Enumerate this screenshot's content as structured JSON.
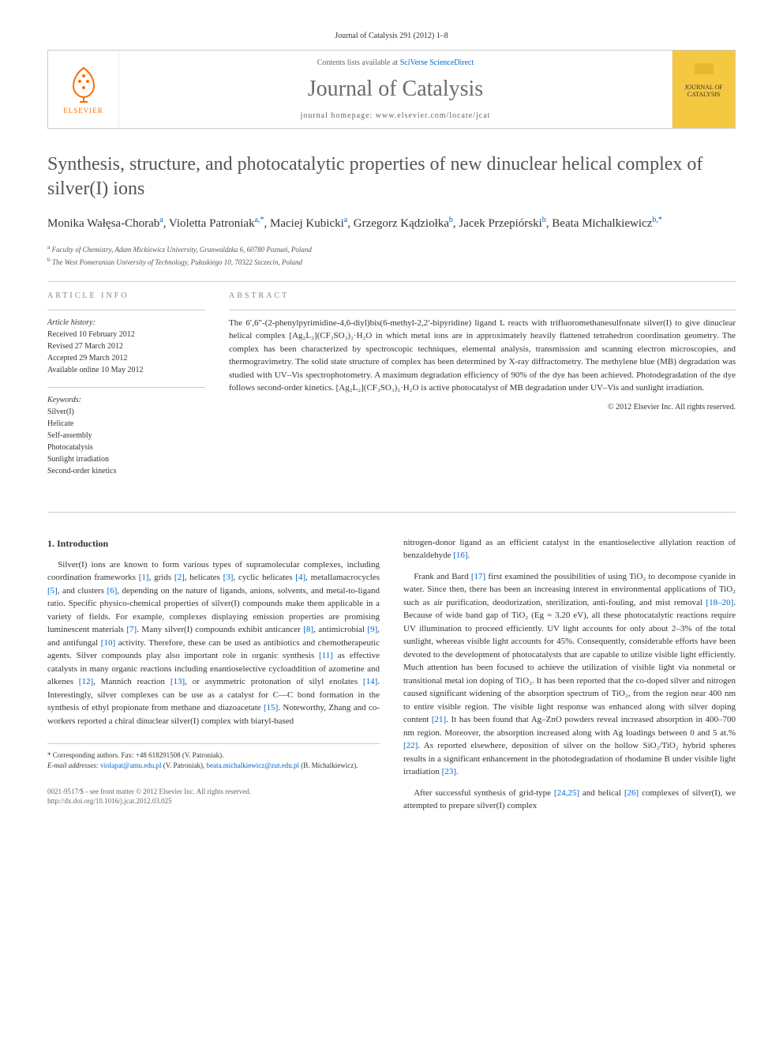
{
  "citation": "Journal of Catalysis 291 (2012) 1–8",
  "header": {
    "contents_prefix": "Contents lists available at ",
    "contents_link": "SciVerse ScienceDirect",
    "journal": "Journal of Catalysis",
    "homepage_prefix": "journal homepage: ",
    "homepage": "www.elsevier.com/locate/jcat",
    "publisher": "ELSEVIER",
    "cover_text": "JOURNAL OF CATALYSIS"
  },
  "title": "Synthesis, structure, and photocatalytic properties of new dinuclear helical complex of silver(I) ions",
  "authors_html": "Monika Wałęsa-Chorab<sup>a</sup>, Violetta Patroniak<sup>a,*</sup>, Maciej Kubicki<sup>a</sup>, Grzegorz Kądziołka<sup>b</sup>, Jacek Przepiórski<sup>b</sup>, Beata Michalkiewicz<sup>b,*</sup>",
  "affiliations": [
    {
      "sup": "a",
      "text": "Faculty of Chemistry, Adam Mickiewicz University, Grunwaldzka 6, 60780 Poznań, Poland"
    },
    {
      "sup": "b",
      "text": "The West Pomeranian University of Technology, Pułaskiego 10, 70322 Szczecin, Poland"
    }
  ],
  "article_info": {
    "heading": "ARTICLE INFO",
    "history_label": "Article history:",
    "history": [
      "Received 10 February 2012",
      "Revised 27 March 2012",
      "Accepted 29 March 2012",
      "Available online 10 May 2012"
    ],
    "keywords_label": "Keywords:",
    "keywords": [
      "Silver(I)",
      "Helicate",
      "Self-assembly",
      "Photocatalysis",
      "Sunlight irradiation",
      "Second-order kinetics"
    ]
  },
  "abstract": {
    "heading": "ABSTRACT",
    "text": "The 6′,6″-(2-phenylpyrimidine-4,6-diyl)bis(6-methyl-2,2′-bipyridine) ligand L reacts with trifluoromethanesulfonate silver(I) to give dinuclear helical complex [Ag₂L₂](CF₃SO₃)₂·H₂O in which metal ions are in approximately heavily flattened tetrahedron coordination geometry. The complex has been characterized by spectroscopic techniques, elemental analysis, transmission and scanning electron microscopies, and thermogravimetry. The solid state structure of complex has been determined by X-ray diffractometry. The methylene blue (MB) degradation was studied with UV–Vis spectrophotometry. A maximum degradation efficiency of 90% of the dye has been achieved. Photodegradation of the dye follows second-order kinetics. [Ag₂L₂](CF₃SO₃)₂·H₂O is active photocatalyst of MB degradation under UV–Vis and sunlight irradiation.",
    "copyright": "© 2012 Elsevier Inc. All rights reserved."
  },
  "intro": {
    "heading": "1. Introduction",
    "para1": "Silver(I) ions are known to form various types of supramolecular complexes, including coordination frameworks [1], grids [2], helicates [3], cyclic helicates [4], metallamacrocycles [5], and clusters [6], depending on the nature of ligands, anions, solvents, and metal-to-ligand ratio. Specific physico-chemical properties of silver(I) compounds make them applicable in a variety of fields. For example, complexes displaying emission properties are promising luminescent materials [7]. Many silver(I) compounds exhibit anticancer [8], antimicrobial [9], and antifungal [10] activity. Therefore, these can be used as antibiotics and chemotherapeutic agents. Silver compounds play also important role in organic synthesis [11] as effective catalysts in many organic reactions including enantioselective cycloaddition of azometine and alkenes [12], Mannich reaction [13], or asymmetric protonation of silyl enolates [14]. Interestingly, silver complexes can be use as a catalyst for C—C bond formation in the synthesis of ethyl propionate from methane and diazoacetate [15]. Noteworthy, Zhang and co-workers reported a chiral dinuclear silver(I) complex with biaryl-based",
    "para2": "nitrogen-donor ligand as an efficient catalyst in the enantioselective allylation reaction of benzaldehyde [16].",
    "para3": "Frank and Bard [17] first examined the possibilities of using TiO₂ to decompose cyanide in water. Since then, there has been an increasing interest in environmental applications of TiO₂ such as air purification, deodorization, sterilization, anti-fouling, and mist removal [18–20]. Because of wide band gap of TiO₂ (Eg = 3.20 eV), all these photocatalytic reactions require UV illumination to proceed efficiently. UV light accounts for only about 2–3% of the total sunlight, whereas visible light accounts for 45%. Consequently, considerable efforts have been devoted to the development of photocatalysts that are capable to utilize visible light efficiently. Much attention has been focused to achieve the utilization of visible light via nonmetal or transitional metal ion doping of TiO₂. It has been reported that the co-doped silver and nitrogen caused significant widening of the absorption spectrum of TiO₂, from the region near 400 nm to entire visible region. The visible light response was enhanced along with silver doping content [21]. It has been found that Ag–ZnO powders reveal increased absorption in 400–700 nm region. Moreover, the absorption increased along with Ag loadings between 0 and 5 at.% [22]. As reported elsewhere, deposition of silver on the hollow SiO₂/TiO₂ hybrid spheres results in a significant enhancement in the photodegradation of rhodamine B under visible light irradiation [23].",
    "para4": "After successful synthesis of grid-type [24,25] and helical [26] complexes of silver(I), we attempted to prepare silver(I) complex"
  },
  "footer": {
    "corr_label": "* Corresponding authors. Fax: +48 618291508 (V. Patroniak).",
    "email_label": "E-mail addresses:",
    "email1": "violapat@amu.edu.pl",
    "email1_name": "(V. Patroniak),",
    "email2": "beata.michalkiewicz@zut.edu.pl",
    "email2_name": "(B. Michalkiewicz)."
  },
  "bottom": {
    "line1": "0021-9517/$ - see front matter © 2012 Elsevier Inc. All rights reserved.",
    "line2": "http://dx.doi.org/10.1016/j.jcat.2012.03.025"
  },
  "colors": {
    "elsevier_orange": "#ff6c00",
    "link_blue": "#0066cc",
    "cover_yellow": "#f5c842",
    "title_gray": "#555555",
    "journal_gray": "#6b6b6b",
    "border_gray": "#cccccc"
  }
}
